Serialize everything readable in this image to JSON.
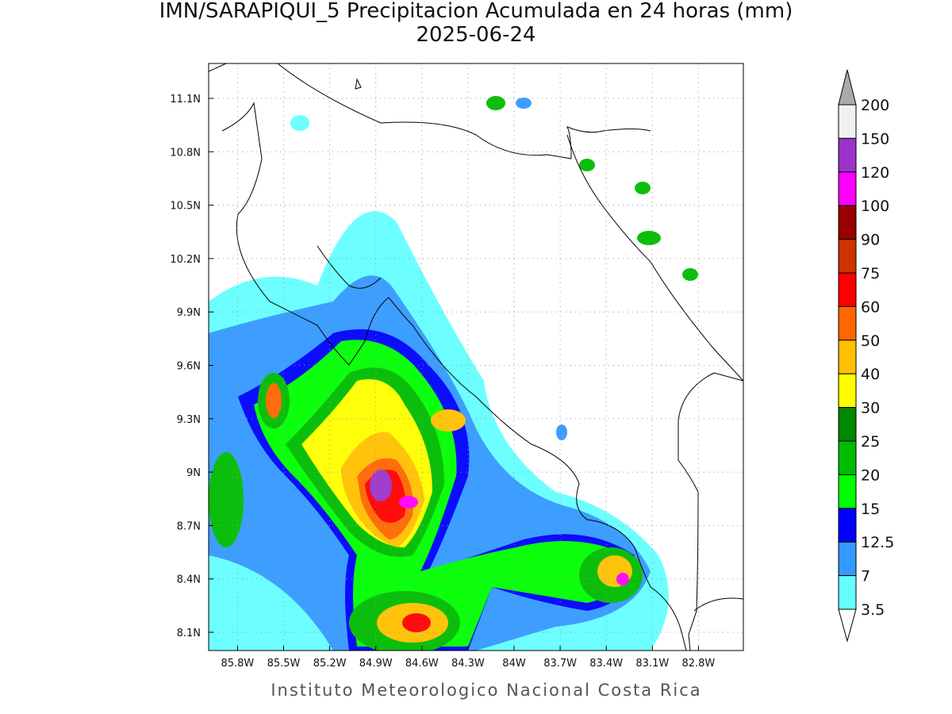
{
  "header": {
    "title": "IMN/SARAPIQUI_5 Precipitacion Acumulada en 24 horas (mm)",
    "subtitle": "2025-06-24"
  },
  "map": {
    "lon_ticks": [
      {
        "value": -85.8,
        "label": "85.8W"
      },
      {
        "value": -85.5,
        "label": "85.5W"
      },
      {
        "value": -85.2,
        "label": "85.2W"
      },
      {
        "value": -84.9,
        "label": "84.9W"
      },
      {
        "value": -84.6,
        "label": "84.6W"
      },
      {
        "value": -84.3,
        "label": "84.3W"
      },
      {
        "value": -84,
        "label": "84W"
      },
      {
        "value": -83.7,
        "label": "83.7W"
      },
      {
        "value": -83.4,
        "label": "83.4W"
      },
      {
        "value": -83.1,
        "label": "83.1W"
      },
      {
        "value": -82.8,
        "label": "82.8W"
      }
    ],
    "lat_ticks": [
      {
        "value": 11.1,
        "label": "11.1N"
      },
      {
        "value": 10.8,
        "label": "10.8N"
      },
      {
        "value": 10.5,
        "label": "10.5N"
      },
      {
        "value": 10.2,
        "label": "10.2N"
      },
      {
        "value": 9.9,
        "label": "9.9N"
      },
      {
        "value": 9.6,
        "label": "9.6N"
      },
      {
        "value": 9.3,
        "label": "9.3N"
      },
      {
        "value": 9,
        "label": "9N"
      },
      {
        "value": 8.7,
        "label": "8.7N"
      },
      {
        "value": 8.4,
        "label": "8.4N"
      },
      {
        "value": 8.1,
        "label": "8.1N"
      }
    ]
  },
  "colorbar": {
    "levels": [
      {
        "value": 200,
        "label": "200"
      },
      {
        "value": 150,
        "label": "150"
      },
      {
        "value": 120,
        "label": "120"
      },
      {
        "value": 100,
        "label": "100"
      },
      {
        "value": 90,
        "label": "90"
      },
      {
        "value": 75,
        "label": "75"
      },
      {
        "value": 60,
        "label": "60"
      },
      {
        "value": 50,
        "label": "50"
      },
      {
        "value": 40,
        "label": "40"
      },
      {
        "value": 30,
        "label": "30"
      },
      {
        "value": 25,
        "label": "25"
      },
      {
        "value": 20,
        "label": "20"
      },
      {
        "value": 15,
        "label": "15"
      },
      {
        "value": 12.5,
        "label": "12.5"
      },
      {
        "value": 7,
        "label": "7"
      },
      {
        "value": 3.5,
        "label": "3.5"
      }
    ],
    "colors": [
      "#f0f0f0",
      "#9933cc",
      "#ff00ff",
      "#990000",
      "#cc3300",
      "#ff0000",
      "#ff6600",
      "#ffc000",
      "#ffff00",
      "#008800",
      "#00bb00",
      "#00ff00",
      "#0000ff",
      "#3399ff",
      "#66ffff"
    ]
  },
  "footer": "Instituto Meteorologico Nacional Costa Rica"
}
